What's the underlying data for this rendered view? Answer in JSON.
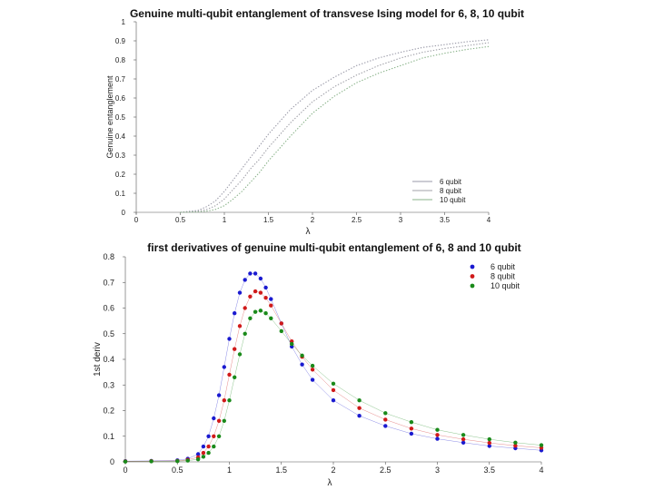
{
  "chart_data": [
    {
      "type": "line",
      "title": "Genuine multi-qubit entanglement of  transvese Ising model for 6, 8, 10 qubit",
      "xlabel": "λ",
      "ylabel": "Genuine entanglement",
      "xlim": [
        0,
        4
      ],
      "ylim": [
        0,
        1
      ],
      "grid": false,
      "legend_position": "bottom-right",
      "x_ticks": [
        "0",
        "0.5",
        "1",
        "1.5",
        "2",
        "2.5",
        "3",
        "3.5",
        "4"
      ],
      "y_ticks": [
        "0",
        "0.1",
        "0.2",
        "0.3",
        "0.4",
        "0.5",
        "0.6",
        "0.7",
        "0.8",
        "0.9",
        "1"
      ],
      "legend": [
        "6 qubit",
        "8 qubit",
        "10 qubit"
      ],
      "series": [
        {
          "name": "6 qubit",
          "color": "#9a9aa8",
          "x": [
            0.5,
            0.7,
            0.8,
            0.9,
            1.0,
            1.1,
            1.2,
            1.3,
            1.4,
            1.5,
            1.75,
            2.0,
            2.25,
            2.5,
            2.75,
            3.0,
            3.25,
            3.5,
            3.75,
            4.0
          ],
          "values": [
            0.0,
            0.01,
            0.03,
            0.06,
            0.11,
            0.17,
            0.23,
            0.29,
            0.35,
            0.41,
            0.54,
            0.64,
            0.71,
            0.77,
            0.81,
            0.84,
            0.865,
            0.88,
            0.895,
            0.905
          ]
        },
        {
          "name": "8 qubit",
          "color": "#a0a0a8",
          "x": [
            0.5,
            0.7,
            0.8,
            0.9,
            1.0,
            1.1,
            1.2,
            1.3,
            1.4,
            1.5,
            1.75,
            2.0,
            2.25,
            2.5,
            2.75,
            3.0,
            3.25,
            3.5,
            3.75,
            4.0
          ],
          "values": [
            0.0,
            0.005,
            0.015,
            0.035,
            0.07,
            0.12,
            0.17,
            0.23,
            0.28,
            0.34,
            0.47,
            0.58,
            0.66,
            0.72,
            0.77,
            0.81,
            0.84,
            0.86,
            0.875,
            0.89
          ]
        },
        {
          "name": "10 qubit",
          "color": "#8ab38a",
          "x": [
            0.5,
            0.7,
            0.8,
            0.9,
            1.0,
            1.1,
            1.2,
            1.3,
            1.4,
            1.5,
            1.75,
            2.0,
            2.25,
            2.5,
            2.75,
            3.0,
            3.25,
            3.5,
            3.75,
            4.0
          ],
          "values": [
            0.0,
            0.002,
            0.006,
            0.015,
            0.035,
            0.07,
            0.11,
            0.16,
            0.21,
            0.27,
            0.4,
            0.52,
            0.61,
            0.68,
            0.73,
            0.77,
            0.81,
            0.835,
            0.855,
            0.87
          ]
        }
      ]
    },
    {
      "type": "scatter",
      "title": "first derivatives of genuine multi-qubit entanglement of 6, 8 and 10 qubit",
      "xlabel": "λ",
      "ylabel": "1st deriv",
      "xlim": [
        0,
        4
      ],
      "ylim": [
        0,
        0.8
      ],
      "grid": false,
      "legend_position": "top-right",
      "x_ticks": [
        "0",
        "0.5",
        "1",
        "1.5",
        "2",
        "2.5",
        "3",
        "3.5",
        "4"
      ],
      "y_ticks": [
        "0",
        "0.1",
        "0.2",
        "0.3",
        "0.4",
        "0.5",
        "0.6",
        "0.7",
        "0.8"
      ],
      "legend": [
        "6 qubit",
        "8 qubit",
        "10 qubit"
      ],
      "series": [
        {
          "name": "6 qubit",
          "color": "#1a1ad0",
          "x": [
            0,
            0.25,
            0.5,
            0.6,
            0.7,
            0.75,
            0.8,
            0.85,
            0.9,
            0.95,
            1.0,
            1.05,
            1.1,
            1.15,
            1.2,
            1.25,
            1.3,
            1.35,
            1.4,
            1.5,
            1.6,
            1.7,
            1.8,
            2.0,
            2.25,
            2.5,
            2.75,
            3.0,
            3.25,
            3.5,
            3.75,
            4.0
          ],
          "values": [
            0.003,
            0.004,
            0.006,
            0.012,
            0.03,
            0.06,
            0.1,
            0.17,
            0.26,
            0.37,
            0.48,
            0.58,
            0.66,
            0.71,
            0.735,
            0.735,
            0.715,
            0.68,
            0.635,
            0.54,
            0.45,
            0.38,
            0.32,
            0.24,
            0.18,
            0.14,
            0.11,
            0.09,
            0.075,
            0.062,
            0.053,
            0.045
          ]
        },
        {
          "name": "8 qubit",
          "color": "#d01a1a",
          "x": [
            0,
            0.25,
            0.5,
            0.6,
            0.7,
            0.75,
            0.8,
            0.85,
            0.9,
            0.95,
            1.0,
            1.05,
            1.1,
            1.15,
            1.2,
            1.25,
            1.3,
            1.35,
            1.4,
            1.5,
            1.6,
            1.7,
            1.8,
            2.0,
            2.25,
            2.5,
            2.75,
            3.0,
            3.25,
            3.5,
            3.75,
            4.0
          ],
          "values": [
            0.002,
            0.003,
            0.004,
            0.008,
            0.018,
            0.035,
            0.06,
            0.1,
            0.16,
            0.24,
            0.34,
            0.44,
            0.53,
            0.6,
            0.645,
            0.665,
            0.66,
            0.64,
            0.61,
            0.54,
            0.47,
            0.41,
            0.36,
            0.28,
            0.21,
            0.165,
            0.13,
            0.105,
            0.088,
            0.074,
            0.063,
            0.055
          ]
        },
        {
          "name": "10 qubit",
          "color": "#1a8a1a",
          "x": [
            0,
            0.25,
            0.5,
            0.6,
            0.7,
            0.75,
            0.8,
            0.85,
            0.9,
            0.95,
            1.0,
            1.05,
            1.1,
            1.15,
            1.2,
            1.25,
            1.3,
            1.35,
            1.4,
            1.5,
            1.6,
            1.7,
            1.8,
            2.0,
            2.25,
            2.5,
            2.75,
            3.0,
            3.25,
            3.5,
            3.75,
            4.0
          ],
          "values": [
            0.001,
            0.002,
            0.003,
            0.005,
            0.01,
            0.02,
            0.035,
            0.06,
            0.1,
            0.16,
            0.24,
            0.33,
            0.42,
            0.5,
            0.56,
            0.585,
            0.59,
            0.58,
            0.56,
            0.51,
            0.46,
            0.415,
            0.375,
            0.305,
            0.24,
            0.19,
            0.155,
            0.125,
            0.105,
            0.088,
            0.075,
            0.065
          ]
        }
      ]
    }
  ]
}
